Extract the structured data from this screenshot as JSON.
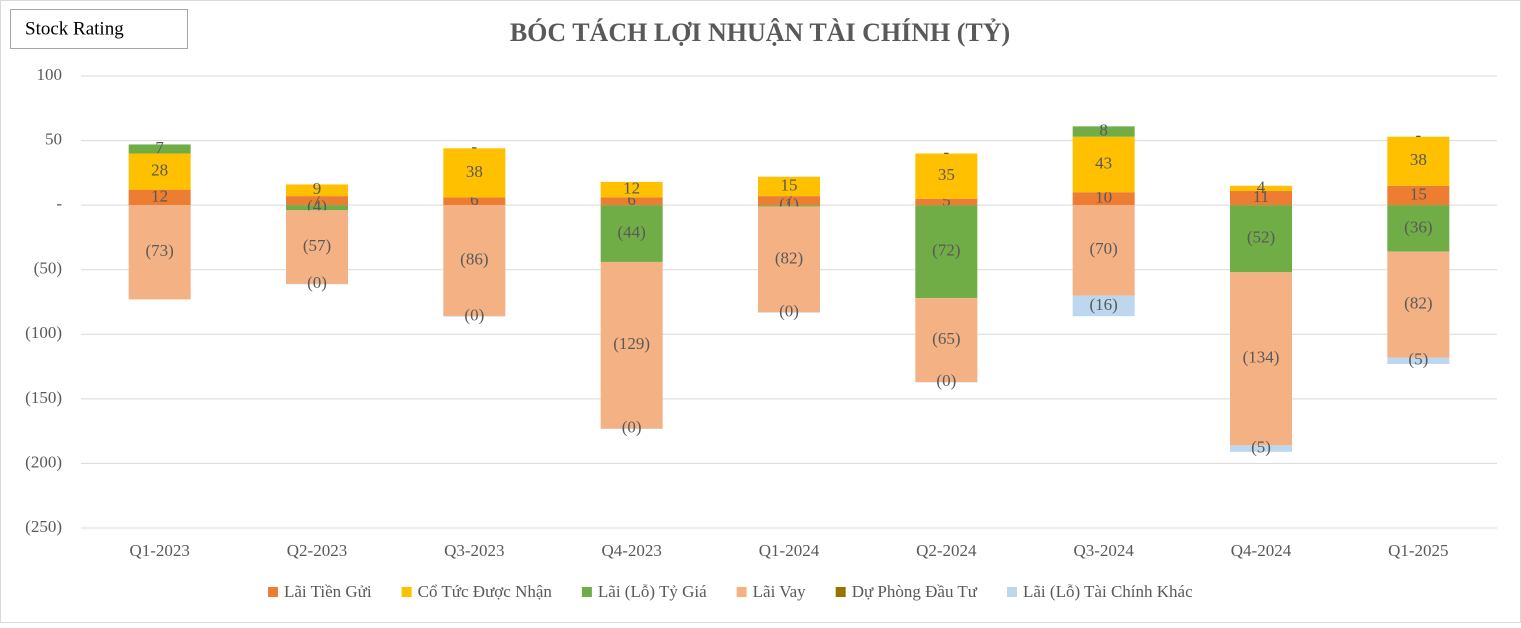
{
  "badge": "Stock Rating",
  "chart_data": {
    "type": "stacked_bar",
    "title": "BÓC TÁCH LỢI NHUẬN TÀI CHÍNH (TỶ)",
    "categories": [
      "Q1-2023",
      "Q2-2023",
      "Q3-2023",
      "Q4-2023",
      "Q1-2024",
      "Q2-2024",
      "Q3-2024",
      "Q4-2024",
      "Q1-2025"
    ],
    "ylim": [
      -250,
      100
    ],
    "yticks": [
      100,
      50,
      {
        "value": 0,
        "label": "-"
      },
      {
        "value": -50,
        "label": "(50)"
      },
      {
        "value": -100,
        "label": "(100)"
      },
      {
        "value": -150,
        "label": "(150)"
      },
      {
        "value": -200,
        "label": "(200)"
      },
      {
        "value": -250,
        "label": "(250)"
      }
    ],
    "grid": true,
    "legend": "bottom",
    "series": [
      {
        "name": "Lãi Tiền Gửi",
        "color": "#ed7d31",
        "values": [
          12,
          7,
          6,
          6,
          7,
          5,
          10,
          11,
          15
        ],
        "value_labels": [
          "12",
          "7",
          "6",
          "6",
          "7",
          "5",
          "10",
          "11",
          "15"
        ]
      },
      {
        "name": "Cổ Tức Được Nhận",
        "color": "#ffc000",
        "values": [
          28,
          9,
          38,
          12,
          15,
          35,
          43,
          4,
          38
        ],
        "value_labels": [
          "28",
          "9",
          "38",
          "12",
          "15",
          "35",
          "43",
          "4",
          "38"
        ]
      },
      {
        "name": "Lãi (Lỗ) Tỷ Giá",
        "color": "#70ad47",
        "values": [
          7,
          -4,
          null,
          -44,
          -1,
          -72,
          8,
          -52,
          -36
        ],
        "value_labels": [
          "7",
          "(4)",
          null,
          "(44)",
          "(1)",
          "(72)",
          "8",
          "(52)",
          "(36)"
        ]
      },
      {
        "name": "Lãi Vay",
        "color": "#f4b183",
        "values": [
          -73,
          -57,
          -86,
          -129,
          -82,
          -65,
          -70,
          -134,
          -82
        ],
        "value_labels": [
          "(73)",
          "(57)",
          "(86)",
          "(129)",
          "(82)",
          "(65)",
          "(70)",
          "(134)",
          "(82)"
        ]
      },
      {
        "name": "Dự Phòng Đầu Tư",
        "color": "#997300",
        "values": [
          null,
          null,
          0,
          null,
          null,
          0,
          null,
          null,
          0
        ],
        "value_labels": [
          null,
          null,
          "-",
          null,
          null,
          "-",
          null,
          null,
          "-"
        ]
      },
      {
        "name": "Lãi (Lỗ) Tài Chính Khác",
        "color": "#bdd7ee",
        "values": [
          null,
          -0.3,
          -0.3,
          -0.3,
          -0.3,
          -0.3,
          -16,
          -5,
          -5
        ],
        "value_labels": [
          null,
          "(0)",
          "(0)",
          "(0)",
          "(0)",
          "(0)",
          "(16)",
          "(5)",
          "(5)"
        ]
      }
    ]
  }
}
